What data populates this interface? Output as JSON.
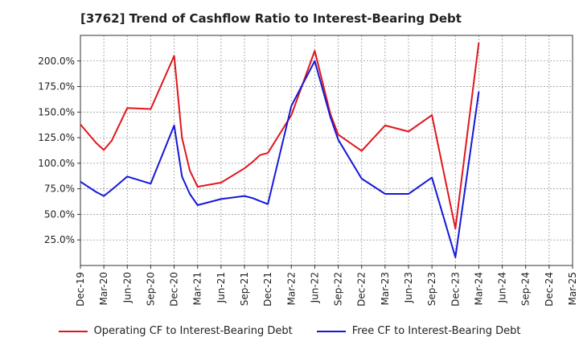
{
  "title": "[3762]  Trend of Cashflow Ratio to Interest-Bearing Debt",
  "chart_data": {
    "type": "line",
    "title": "[3762]  Trend of Cashflow Ratio to Interest-Bearing Debt",
    "x": [
      "Dec-19",
      "Feb-20",
      "Mar-20",
      "Apr-20",
      "Jun-20",
      "Sep-20",
      "Dec-20",
      "Jan-21",
      "Feb-21",
      "Mar-21",
      "Jun-21",
      "Sep-21",
      "Oct-21",
      "Nov-21",
      "Dec-21",
      "Jan-22",
      "Mar-22",
      "Jun-22",
      "Jul-22",
      "Aug-22",
      "Sep-22",
      "Dec-22",
      "Mar-23",
      "Jun-23",
      "Sep-23",
      "Dec-23",
      "Mar-24"
    ],
    "x_months": [
      0,
      2,
      3,
      4,
      6,
      9,
      12,
      13,
      14,
      15,
      18,
      21,
      22,
      23,
      24,
      25,
      27,
      30,
      31,
      32,
      33,
      36,
      39,
      42,
      45,
      48,
      51
    ],
    "tick_labels": [
      "Dec-19",
      "Mar-20",
      "Jun-20",
      "Sep-20",
      "Dec-20",
      "Mar-21",
      "Jun-21",
      "Sep-21",
      "Dec-21",
      "Mar-22",
      "Jun-22",
      "Sep-22",
      "Dec-22",
      "Mar-23",
      "Jun-23",
      "Sep-23",
      "Dec-23",
      "Mar-24",
      "Jun-24",
      "Sep-24",
      "Dec-24",
      "Mar-25"
    ],
    "ylim": [
      0,
      225
    ],
    "yticks": [
      25,
      50,
      75,
      100,
      125,
      150,
      175,
      200
    ],
    "ytick_labels": [
      "25.0%",
      "50.0%",
      "75.0%",
      "100.0%",
      "125.0%",
      "150.0%",
      "175.0%",
      "200.0%"
    ],
    "grid": true,
    "legend_position": "bottom",
    "series": [
      {
        "name": "Operating CF to Interest-Bearing Debt",
        "color": "#e0161d",
        "values": [
          138,
          120,
          113,
          122,
          154,
          153,
          205,
          125,
          93,
          77,
          81,
          95,
          101,
          108,
          110,
          null,
          147,
          210,
          null,
          148,
          128,
          112,
          137,
          131,
          147,
          36,
          218
        ]
      },
      {
        "name": "Free CF to Interest-Bearing Debt",
        "color": "#1518d8",
        "values": [
          82,
          72,
          68,
          74,
          87,
          80,
          137,
          87,
          70,
          59,
          65,
          68,
          66,
          63,
          60,
          null,
          156,
          200,
          null,
          145,
          123,
          85,
          70,
          70,
          86,
          8,
          170
        ]
      }
    ]
  },
  "legend": {
    "operating": "Operating CF to Interest-Bearing Debt",
    "free": "Free CF to Interest-Bearing Debt"
  }
}
